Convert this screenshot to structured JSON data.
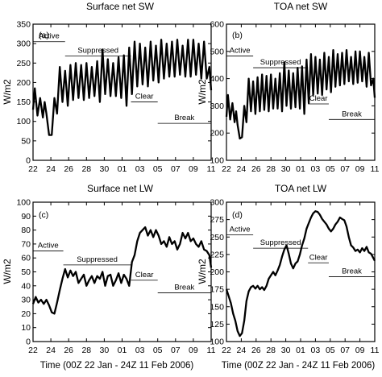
{
  "figure": {
    "ylabel": "W/m2",
    "xlabel": "Time (00Z 22 Jan - 24Z 11 Feb 2006)"
  },
  "chart_data": [
    {
      "type": "line",
      "title": "Surface net SW",
      "panel_label": "(a)",
      "xlim": [
        22,
        42
      ],
      "ylim": [
        0,
        350
      ],
      "x_tick_values": [
        22,
        24,
        26,
        28,
        30,
        32,
        34,
        36,
        38,
        40,
        42
      ],
      "x_tick_labels": [
        "22",
        "24",
        "26",
        "28",
        "30",
        "01",
        "03",
        "05",
        "07",
        "09",
        "11"
      ],
      "y_ticks": [
        0,
        50,
        100,
        150,
        200,
        250,
        300,
        350
      ],
      "phases": [
        {
          "label": "Active",
          "x": [
            22,
            25.6
          ],
          "y": 305
        },
        {
          "label": "Suppressed",
          "x": [
            25.6,
            33.0
          ],
          "y": 268
        },
        {
          "label": "Clear",
          "x": [
            33.0,
            36.0
          ],
          "y": 150
        },
        {
          "label": "Break",
          "x": [
            36.0,
            42.0
          ],
          "y": 95
        }
      ],
      "series": [
        {
          "x": [
            22,
            22.2,
            22.5,
            22.8,
            23.1,
            23.3,
            23.5,
            23.8,
            24.1,
            24.4,
            24.7,
            25.0,
            25.3,
            25.6,
            25.9,
            26.2,
            26.5,
            26.8,
            27.1,
            27.4,
            27.7,
            28.0,
            28.3,
            28.6,
            28.9,
            29.2,
            29.5,
            29.8,
            30.1,
            30.4,
            30.7,
            31.0,
            31.3,
            31.6,
            31.9,
            32.2,
            32.5,
            32.8,
            33.1,
            33.4,
            33.7,
            34.0,
            34.3,
            34.6,
            34.9,
            35.2,
            35.5,
            35.8,
            36.1,
            36.4,
            36.7,
            37.0,
            37.3,
            37.6,
            37.9,
            38.2,
            38.5,
            38.8,
            39.1,
            39.4,
            39.7,
            40.0,
            40.3,
            40.6,
            40.9,
            41.2,
            41.5,
            41.8,
            42.0
          ],
          "y": [
            130,
            185,
            115,
            160,
            110,
            150,
            120,
            65,
            65,
            160,
            120,
            240,
            150,
            230,
            140,
            245,
            155,
            250,
            160,
            245,
            155,
            250,
            160,
            240,
            165,
            255,
            150,
            285,
            170,
            260,
            165,
            250,
            165,
            265,
            160,
            270,
            140,
            290,
            170,
            305,
            190,
            300,
            195,
            290,
            190,
            305,
            205,
            295,
            200,
            310,
            210,
            300,
            215,
            305,
            215,
            310,
            220,
            295,
            215,
            310,
            215,
            310,
            220,
            300,
            210,
            305,
            210,
            240,
            180
          ]
        }
      ]
    },
    {
      "type": "line",
      "title": "TOA net SW",
      "panel_label": "(b)",
      "xlim": [
        22,
        42
      ],
      "ylim": [
        100,
        600
      ],
      "x_tick_values": [
        22,
        24,
        26,
        28,
        30,
        32,
        34,
        36,
        38,
        40,
        42
      ],
      "x_tick_labels": [
        "22",
        "24",
        "26",
        "28",
        "30",
        "01",
        "03",
        "05",
        "07",
        "09",
        "11"
      ],
      "y_ticks": [
        100,
        200,
        300,
        400,
        500,
        600
      ],
      "phases": [
        {
          "label": "Active",
          "x": [
            22,
            25.6
          ],
          "y": 483
        },
        {
          "label": "Suppressed",
          "x": [
            25.6,
            33.0
          ],
          "y": 440
        },
        {
          "label": "Clear",
          "x": [
            33.0,
            35.8
          ],
          "y": 307
        },
        {
          "label": "Break",
          "x": [
            35.8,
            42.0
          ],
          "y": 250
        }
      ],
      "series": [
        {
          "x": [
            22,
            22.2,
            22.5,
            22.8,
            23.1,
            23.3,
            23.5,
            23.8,
            24.1,
            24.4,
            24.7,
            25.0,
            25.3,
            25.6,
            25.9,
            26.2,
            26.5,
            26.8,
            27.1,
            27.4,
            27.7,
            28.0,
            28.3,
            28.6,
            28.9,
            29.2,
            29.5,
            29.8,
            30.1,
            30.4,
            30.7,
            31.0,
            31.3,
            31.6,
            31.9,
            32.2,
            32.5,
            32.8,
            33.1,
            33.4,
            33.7,
            34.0,
            34.3,
            34.6,
            34.9,
            35.2,
            35.5,
            35.8,
            36.1,
            36.4,
            36.7,
            37.0,
            37.3,
            37.6,
            37.9,
            38.2,
            38.5,
            38.8,
            39.1,
            39.4,
            39.7,
            40.0,
            40.3,
            40.6,
            40.9,
            41.2,
            41.5,
            41.8,
            42.0
          ],
          "y": [
            260,
            340,
            250,
            310,
            240,
            280,
            230,
            180,
            185,
            300,
            240,
            400,
            280,
            390,
            270,
            405,
            280,
            415,
            285,
            410,
            280,
            415,
            290,
            400,
            290,
            420,
            280,
            460,
            300,
            430,
            290,
            420,
            295,
            440,
            290,
            445,
            270,
            470,
            310,
            490,
            340,
            480,
            345,
            470,
            340,
            495,
            360,
            480,
            350,
            505,
            370,
            490,
            375,
            495,
            380,
            505,
            390,
            480,
            380,
            500,
            385,
            500,
            390,
            480,
            370,
            495,
            375,
            400,
            330
          ]
        }
      ]
    },
    {
      "type": "line",
      "title": "Surface net LW",
      "panel_label": "(c)",
      "xlim": [
        22,
        42
      ],
      "ylim": [
        0,
        100
      ],
      "x_tick_values": [
        22,
        24,
        26,
        28,
        30,
        32,
        34,
        36,
        38,
        40,
        42
      ],
      "x_tick_labels": [
        "22",
        "24",
        "26",
        "28",
        "30",
        "01",
        "03",
        "05",
        "07",
        "09",
        "11"
      ],
      "y_ticks": [
        0,
        10,
        20,
        30,
        40,
        50,
        60,
        70,
        80,
        90,
        100
      ],
      "phases": [
        {
          "label": "Active",
          "x": [
            22,
            25.4
          ],
          "y": 65
        },
        {
          "label": "Suppressed",
          "x": [
            25.4,
            33.0
          ],
          "y": 55
        },
        {
          "label": "Clear",
          "x": [
            33.0,
            36.0
          ],
          "y": 44
        },
        {
          "label": "Break",
          "x": [
            36.0,
            42.0
          ],
          "y": 35
        }
      ],
      "series": [
        {
          "x": [
            22,
            22.3,
            22.6,
            22.9,
            23.2,
            23.5,
            23.8,
            24.1,
            24.4,
            24.7,
            25.0,
            25.3,
            25.6,
            25.9,
            26.2,
            26.5,
            26.8,
            27.1,
            27.4,
            27.7,
            28.0,
            28.3,
            28.6,
            28.9,
            29.2,
            29.5,
            29.8,
            30.1,
            30.4,
            30.7,
            31.0,
            31.3,
            31.6,
            31.9,
            32.2,
            32.5,
            32.8,
            33.1,
            33.4,
            33.7,
            34.0,
            34.3,
            34.6,
            34.9,
            35.2,
            35.5,
            35.8,
            36.1,
            36.4,
            36.7,
            37.0,
            37.3,
            37.6,
            37.9,
            38.2,
            38.5,
            38.8,
            39.1,
            39.4,
            39.7,
            40.0,
            40.3,
            40.6,
            40.9,
            41.2,
            41.5,
            41.8,
            42.0
          ],
          "y": [
            27,
            32,
            28,
            30,
            27,
            30,
            26,
            21,
            20,
            28,
            37,
            45,
            52,
            46,
            51,
            47,
            50,
            42,
            45,
            48,
            40,
            44,
            47,
            42,
            47,
            45,
            50,
            40,
            47,
            48,
            40,
            44,
            49,
            42,
            48,
            45,
            40,
            57,
            62,
            72,
            78,
            80,
            82,
            76,
            80,
            75,
            80,
            76,
            70,
            72,
            68,
            75,
            70,
            72,
            66,
            70,
            78,
            74,
            78,
            72,
            74,
            70,
            68,
            72,
            66,
            65,
            62,
            53
          ]
        }
      ]
    },
    {
      "type": "line",
      "title": "TOA net LW",
      "panel_label": "(d)",
      "xlim": [
        22,
        42
      ],
      "ylim": [
        100,
        300
      ],
      "x_tick_values": [
        22,
        24,
        26,
        28,
        30,
        32,
        34,
        36,
        38,
        40,
        42
      ],
      "x_tick_labels": [
        "22",
        "24",
        "26",
        "28",
        "30",
        "01",
        "03",
        "05",
        "07",
        "09",
        "11"
      ],
      "y_ticks": [
        100,
        125,
        150,
        175,
        200,
        225,
        250,
        275,
        300
      ],
      "phases": [
        {
          "label": "Active",
          "x": [
            22,
            25.6
          ],
          "y": 253
        },
        {
          "label": "Suppressed",
          "x": [
            25.6,
            33.0
          ],
          "y": 234
        },
        {
          "label": "Clear",
          "x": [
            33.0,
            35.8
          ],
          "y": 213
        },
        {
          "label": "Break",
          "x": [
            35.8,
            42.0
          ],
          "y": 193
        }
      ],
      "series": [
        {
          "x": [
            22,
            22.3,
            22.6,
            22.9,
            23.2,
            23.5,
            23.8,
            24.1,
            24.4,
            24.7,
            25.0,
            25.3,
            25.6,
            25.9,
            26.2,
            26.5,
            26.8,
            27.1,
            27.4,
            27.7,
            28.0,
            28.3,
            28.6,
            28.9,
            29.2,
            29.5,
            29.8,
            30.1,
            30.4,
            30.7,
            31.0,
            31.3,
            31.6,
            31.9,
            32.2,
            32.5,
            32.8,
            33.1,
            33.4,
            33.7,
            34.0,
            34.3,
            34.6,
            34.9,
            35.2,
            35.5,
            35.8,
            36.1,
            36.4,
            36.7,
            37.0,
            37.3,
            37.6,
            37.9,
            38.2,
            38.5,
            38.8,
            39.1,
            39.4,
            39.7,
            40.0,
            40.3,
            40.6,
            40.9,
            41.2,
            41.5,
            41.8,
            42.0
          ],
          "y": [
            175,
            165,
            155,
            140,
            130,
            115,
            108,
            112,
            130,
            158,
            172,
            178,
            180,
            176,
            180,
            175,
            178,
            174,
            180,
            190,
            195,
            200,
            195,
            202,
            210,
            222,
            232,
            238,
            226,
            212,
            205,
            212,
            215,
            225,
            238,
            248,
            262,
            270,
            278,
            284,
            287,
            286,
            282,
            276,
            272,
            268,
            262,
            258,
            262,
            268,
            272,
            278,
            276,
            274,
            265,
            250,
            238,
            235,
            230,
            232,
            228,
            234,
            230,
            236,
            228,
            226,
            220,
            216
          ]
        }
      ]
    }
  ]
}
